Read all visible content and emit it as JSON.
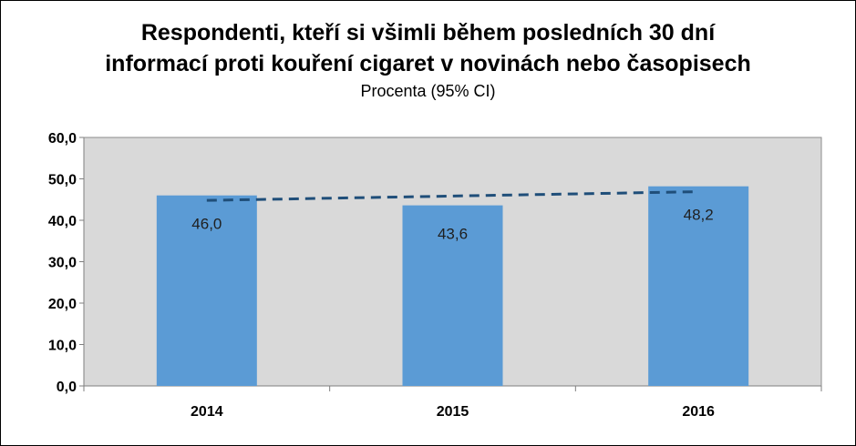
{
  "chart_data": {
    "type": "bar",
    "title_line1": "Respondenti, kteří si všimli během posledních 30 dní",
    "title_line2": "informací proti kouření cigaret v novinách nebo časopisech",
    "subtitle": "Procenta (95% CI)",
    "categories": [
      "2014",
      "2015",
      "2016"
    ],
    "values": [
      46.0,
      43.6,
      48.2
    ],
    "data_labels": [
      "46,0",
      "43,6",
      "48,2"
    ],
    "y_ticks": [
      "0,0",
      "10,0",
      "20,0",
      "30,0",
      "40,0",
      "50,0",
      "60,0"
    ],
    "ylim": [
      0,
      60
    ],
    "trendline": {
      "style": "dashed",
      "x": [
        "2014",
        "2016"
      ],
      "y": [
        44.8,
        46.9
      ]
    },
    "grid": false,
    "legend": "none",
    "colors": {
      "bar": "#5b9bd5",
      "plot_bg": "#d9d9d9",
      "trendline": "#1f4e79"
    }
  }
}
